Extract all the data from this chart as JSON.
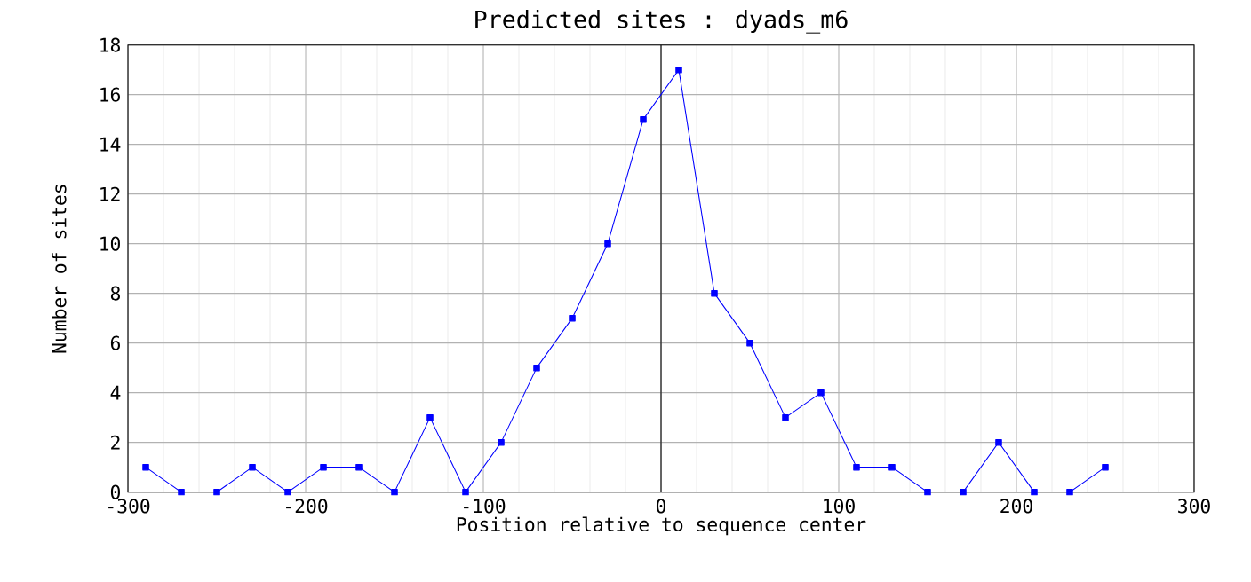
{
  "chart_data": {
    "type": "line",
    "title": "Predicted sites : dyads_m6",
    "xlabel": "Position relative to sequence center",
    "ylabel": "Number of sites",
    "x": [
      -290,
      -270,
      -250,
      -230,
      -210,
      -190,
      -170,
      -150,
      -130,
      -110,
      -90,
      -70,
      -50,
      -30,
      -10,
      10,
      30,
      50,
      70,
      90,
      110,
      130,
      150,
      170,
      190,
      210,
      230,
      250
    ],
    "series": [
      {
        "color": "#0000ff",
        "values": [
          1,
          0,
          0,
          1,
          0,
          1,
          1,
          0,
          3,
          0,
          2,
          5,
          7,
          10,
          15,
          17,
          8,
          6,
          3,
          4,
          1,
          1,
          0,
          0,
          2,
          0,
          0,
          1
        ]
      }
    ],
    "xlim": [
      -300,
      300
    ],
    "xticks": [
      -300,
      -200,
      -100,
      0,
      100,
      200,
      300
    ],
    "ylim": [
      0,
      18
    ],
    "yticks": [
      0,
      2,
      4,
      6,
      8,
      10,
      12,
      14,
      16,
      18
    ],
    "ref_lines": [
      {
        "axis": "x",
        "value": 0,
        "color": "#000000"
      }
    ],
    "grid": true,
    "marker": "square",
    "line_style": "solid"
  }
}
